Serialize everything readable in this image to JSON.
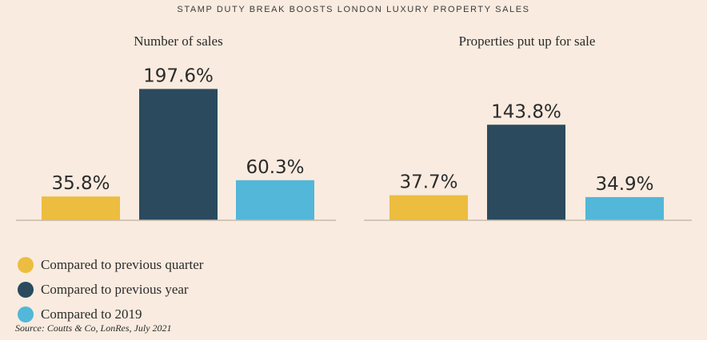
{
  "title": "STAMP DUTY BREAK BOOSTS LONDON LUXURY PROPERTY SALES",
  "source": "Source: Coutts & Co, LonRes, July 2021",
  "colors": {
    "previous_quarter": "#ecbd3f",
    "previous_year": "#2b4a5e",
    "vs_2019": "#52b7d9",
    "baseline": "#c7b9aa"
  },
  "legend": [
    {
      "label": "Compared to previous quarter",
      "color": "#ecbd3f"
    },
    {
      "label": "Compared to previous year",
      "color": "#2b4a5e"
    },
    {
      "label": "Compared to 2019",
      "color": "#52b7d9"
    }
  ],
  "chart_data": [
    {
      "type": "bar",
      "title": "Number of sales",
      "series": [
        {
          "name": "Compared to previous quarter",
          "values": [
            35.8
          ],
          "label": "35.8%"
        },
        {
          "name": "Compared to previous year",
          "values": [
            197.6
          ],
          "label": "197.6%"
        },
        {
          "name": "Compared to 2019",
          "values": [
            60.3
          ],
          "label": "60.3%"
        }
      ],
      "ylim": [
        0,
        200
      ],
      "grid": false,
      "legend_position": "bottom-left"
    },
    {
      "type": "bar",
      "title": "Properties put up for sale",
      "series": [
        {
          "name": "Compared to previous quarter",
          "values": [
            37.7
          ],
          "label": "37.7%"
        },
        {
          "name": "Compared to previous year",
          "values": [
            143.8
          ],
          "label": "143.8%"
        },
        {
          "name": "Compared to 2019",
          "values": [
            34.9
          ],
          "label": "34.9%"
        }
      ],
      "ylim": [
        0,
        200
      ],
      "grid": false,
      "legend_position": "bottom-left"
    }
  ]
}
